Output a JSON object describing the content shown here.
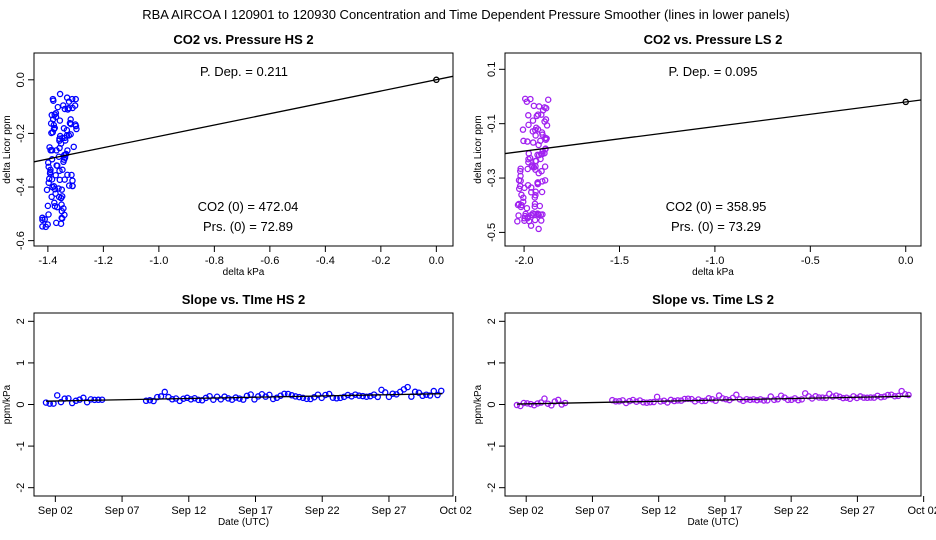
{
  "title": "RBA   AIRCOA I   120901 to 120930   Concentration and Time Dependent Pressure Smoother (lines in lower panels)",
  "colors": {
    "blue": "#0000ff",
    "purple": "#a020f0",
    "black": "#000000"
  },
  "chart_data": [
    {
      "id": "hs-pressure",
      "type": "scatter",
      "title": "CO2 vs. Pressure HS 2",
      "xlabel": "delta kPa",
      "ylabel": "delta Licor ppm",
      "xlim": [
        -1.45,
        0.06
      ],
      "ylim": [
        -0.62,
        0.1
      ],
      "xticks": [
        -1.4,
        -1.2,
        -1.0,
        -0.8,
        -0.6,
        -0.4,
        -0.2,
        0.0
      ],
      "xtick_labels": [
        "-1.4",
        "-1.2",
        "-1.0",
        "-0.8",
        "-0.6",
        "-0.4",
        "-0.2",
        "0.0"
      ],
      "yticks": [
        0.0,
        -0.2,
        -0.4,
        -0.6
      ],
      "ytick_labels": [
        "0.0",
        "-0.2",
        "-0.4",
        "-0.6"
      ],
      "point_color": "blue",
      "cluster": {
        "x_center": -1.35,
        "x_spread": 0.05,
        "y_min": -0.6,
        "y_max": 0.07,
        "count": 110,
        "seed": 11
      },
      "anchor_point": {
        "x": 0.0,
        "y": 0.0
      },
      "fit_line": {
        "x": [
          -1.45,
          0.06
        ],
        "y": [
          -0.306,
          0.013
        ]
      },
      "annotations": {
        "dep": "P. Dep. =  0.211",
        "co2": "CO2 (0) =  472.04",
        "prs": "Prs. (0) =  72.89"
      }
    },
    {
      "id": "ls-pressure",
      "type": "scatter",
      "title": "CO2 vs. Pressure LS 2",
      "xlabel": "delta kPa",
      "ylabel": "delta Licor ppm",
      "xlim": [
        -2.1,
        0.08
      ],
      "ylim": [
        -0.55,
        0.16
      ],
      "xticks": [
        -2.0,
        -1.5,
        -1.0,
        -0.5,
        0.0
      ],
      "xtick_labels": [
        "-2.0",
        "-1.5",
        "-1.0",
        "-0.5",
        "0.0"
      ],
      "yticks": [
        0.1,
        -0.1,
        -0.3,
        -0.5
      ],
      "ytick_labels": [
        "0.1",
        "-0.1",
        "-0.3",
        "-0.5"
      ],
      "point_color": "purple",
      "cluster": {
        "x_center": -1.95,
        "x_spread": 0.07,
        "y_min": -0.52,
        "y_max": 0.12,
        "count": 110,
        "seed": 23
      },
      "anchor_point": {
        "x": 0.0,
        "y": -0.02
      },
      "fit_line": {
        "x": [
          -2.1,
          0.08
        ],
        "y": [
          -0.21,
          -0.013
        ]
      },
      "annotations": {
        "dep": "P. Dep. =  0.095",
        "co2": "CO2 (0) =  358.95",
        "prs": "Prs. (0) =  73.29"
      }
    },
    {
      "id": "hs-time",
      "type": "scatter",
      "title": "Slope vs. TIme HS 2",
      "xlabel": "Date (UTC)",
      "ylabel": "ppm/kPa",
      "xlim": [
        -0.6,
        30.8
      ],
      "ylim": [
        -2.2,
        2.2
      ],
      "xticks": [
        1,
        6,
        11,
        16,
        21,
        26,
        31
      ],
      "xtick_labels": [
        "Sep 02",
        "Sep 07",
        "Sep 12",
        "Sep 17",
        "Sep 22",
        "Sep 27",
        "Oct 02"
      ],
      "yticks": [
        -2,
        -1,
        0,
        1,
        2
      ],
      "ytick_labels": [
        "-2",
        "-1",
        "0",
        "1",
        "2"
      ],
      "point_color": "blue",
      "series": {
        "segments": [
          [
            0.3,
            4.7
          ],
          [
            7.8,
            30.0
          ]
        ],
        "step": 0.28,
        "base": 0.08,
        "slope": 0.006,
        "noise": 0.07,
        "seed": 31
      },
      "fit_line": {
        "x": [
          0.3,
          30.0
        ],
        "y": [
          0.08,
          0.26
        ]
      }
    },
    {
      "id": "ls-time",
      "type": "scatter",
      "title": "Slope vs. Time LS 2",
      "xlabel": "Date (UTC)",
      "ylabel": "ppm/kPa",
      "xlim": [
        -0.6,
        30.8
      ],
      "ylim": [
        -2.2,
        2.2
      ],
      "xticks": [
        1,
        6,
        11,
        16,
        21,
        26,
        31
      ],
      "xtick_labels": [
        "Sep 02",
        "Sep 07",
        "Sep 12",
        "Sep 17",
        "Sep 22",
        "Sep 27",
        "Oct 02"
      ],
      "yticks": [
        -2,
        -1,
        0,
        1,
        2
      ],
      "ytick_labels": [
        "-2",
        "-1",
        "0",
        "1",
        "2"
      ],
      "point_color": "purple",
      "series": {
        "segments": [
          [
            0.3,
            4.1
          ],
          [
            7.5,
            30.0
          ]
        ],
        "step": 0.26,
        "base": 0.01,
        "slope": 0.0065,
        "noise": 0.05,
        "seed": 47
      },
      "fit_line": {
        "x": [
          0.3,
          30.0
        ],
        "y": [
          0.01,
          0.2
        ]
      }
    }
  ]
}
